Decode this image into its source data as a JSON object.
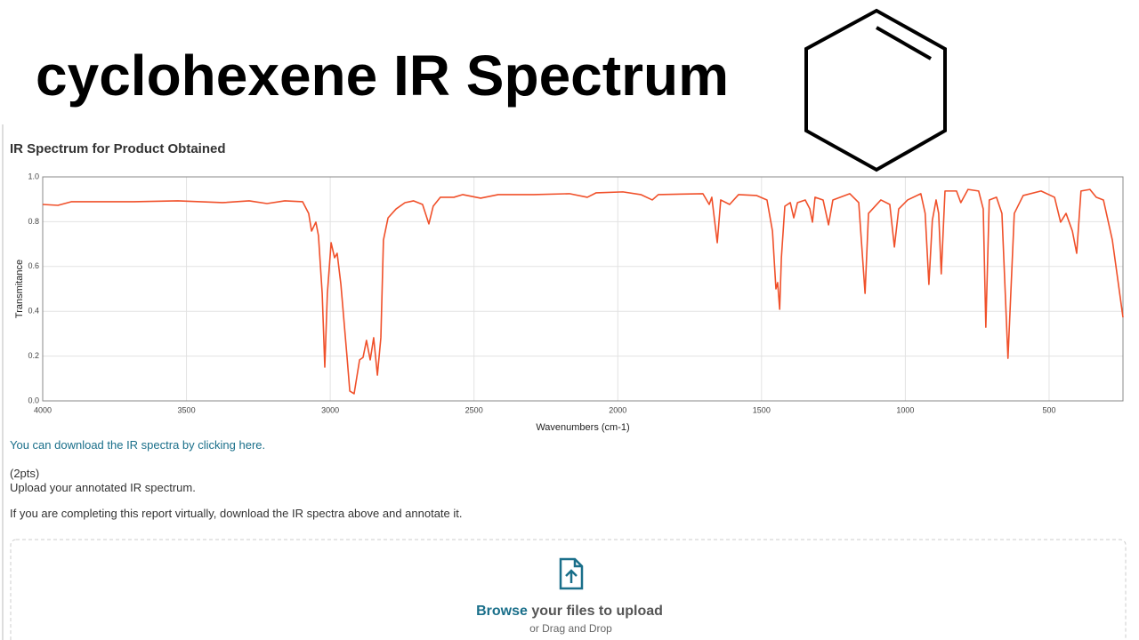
{
  "header": {
    "title": "cyclohexene IR Spectrum"
  },
  "chart_data": {
    "type": "line",
    "title": "IR Spectrum for Product Obtained",
    "x_label": "Wavenumbers (cm-1)",
    "y_label": "Transmitance",
    "x": [
      4000,
      3947,
      3901,
      3684,
      3530,
      3375,
      3282,
      3220,
      3158,
      3096,
      3075,
      3065,
      3050,
      3041,
      3028,
      3019,
      3010,
      2997,
      2985,
      2976,
      2963,
      2942,
      2932,
      2917,
      2898,
      2886,
      2874,
      2861,
      2849,
      2836,
      2824,
      2815,
      2799,
      2771,
      2740,
      2710,
      2679,
      2657,
      2642,
      2617,
      2570,
      2539,
      2477,
      2416,
      2292,
      2168,
      2106,
      2075,
      1982,
      1920,
      1880,
      1859,
      1704,
      1682,
      1673,
      1654,
      1642,
      1611,
      1580,
      1518,
      1481,
      1462,
      1450,
      1444,
      1437,
      1431,
      1419,
      1400,
      1388,
      1375,
      1348,
      1332,
      1323,
      1314,
      1286,
      1267,
      1252,
      1193,
      1162,
      1140,
      1128,
      1085,
      1054,
      1038,
      1023,
      992,
      946,
      931,
      918,
      906,
      893,
      884,
      875,
      862,
      822,
      807,
      782,
      745,
      729,
      720,
      708,
      683,
      664,
      643,
      621,
      590,
      528,
      481,
      460,
      441,
      419,
      404,
      389,
      358,
      336,
      311,
      280,
      243
    ],
    "values": [
      0.877,
      0.873,
      0.889,
      0.889,
      0.893,
      0.885,
      0.893,
      0.881,
      0.893,
      0.889,
      0.837,
      0.758,
      0.798,
      0.738,
      0.48,
      0.151,
      0.48,
      0.706,
      0.639,
      0.659,
      0.52,
      0.202,
      0.044,
      0.032,
      0.183,
      0.194,
      0.27,
      0.183,
      0.282,
      0.115,
      0.282,
      0.718,
      0.817,
      0.857,
      0.885,
      0.893,
      0.877,
      0.79,
      0.869,
      0.909,
      0.909,
      0.921,
      0.905,
      0.921,
      0.921,
      0.925,
      0.909,
      0.929,
      0.933,
      0.921,
      0.897,
      0.921,
      0.925,
      0.877,
      0.909,
      0.706,
      0.897,
      0.877,
      0.921,
      0.917,
      0.897,
      0.758,
      0.5,
      0.528,
      0.409,
      0.639,
      0.869,
      0.885,
      0.817,
      0.885,
      0.897,
      0.857,
      0.798,
      0.909,
      0.897,
      0.786,
      0.897,
      0.925,
      0.885,
      0.48,
      0.837,
      0.897,
      0.877,
      0.687,
      0.857,
      0.897,
      0.925,
      0.837,
      0.52,
      0.806,
      0.897,
      0.837,
      0.567,
      0.937,
      0.937,
      0.885,
      0.944,
      0.937,
      0.857,
      0.329,
      0.897,
      0.909,
      0.837,
      0.19,
      0.837,
      0.917,
      0.937,
      0.909,
      0.798,
      0.837,
      0.758,
      0.659,
      0.937,
      0.944,
      0.909,
      0.897,
      0.718,
      0.373
    ],
    "color": "#f0502a",
    "xlim": [
      4000,
      243
    ],
    "ylim": [
      0,
      1
    ],
    "xticks": [
      4000,
      3500,
      3000,
      2500,
      2000,
      1500,
      1000,
      500
    ],
    "yticks": [
      {
        "value": 0,
        "label": "0.0"
      },
      0.2,
      0.4,
      0.6,
      0.8,
      {
        "value": 1,
        "label": "1.0"
      }
    ],
    "grid": true
  },
  "form": {
    "link": "You can download the IR spectra by clicking here.",
    "points": "(2pts)",
    "prompt": "Upload your annotated IR spectrum.",
    "note": "If you are completing this report virtually, download the IR spectra above and annotate it.",
    "browse": "Browse",
    "browse_rest": "your files to upload",
    "drag": "or Drag and Drop"
  }
}
